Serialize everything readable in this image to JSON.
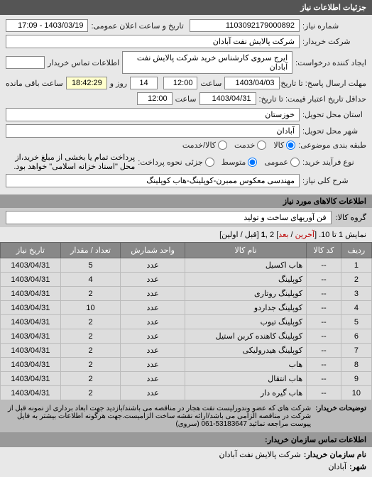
{
  "section_title": "جزئیات اطلاعات نیاز",
  "fields": {
    "request_number_label": "شماره نیاز:",
    "request_number": "1103092179000892",
    "announce_datetime_label": "تاریخ و ساعت اعلان عمومی:",
    "announce_datetime": "1403/03/19 - 17:09",
    "buyer_company_label": "شرکت خریدار:",
    "buyer_company": "شرکت پالایش نفت آبادان",
    "requester_label": "ایجاد کننده درخواست:",
    "requester": "ایرج سروی کارشناس خرید شرکت پالایش نفت آبادان",
    "buyer_contact_label": "اطلاعات تماس خریدار",
    "buyer_contact": "",
    "deadline_send_label": "مهلت ارسال پاسخ: تا تاریخ:",
    "deadline_date": "1403/04/03",
    "saat_label": "ساعت",
    "deadline_time": "12:00",
    "deadline_days": "14",
    "rooz_label": "روز و",
    "deadline_remaining": "18:42:29",
    "remaining_label": "ساعت باقی مانده",
    "validity_label": "حداقل تاریخ اعتبار قیمت: تا تاریخ:",
    "validity_date": "1403/04/31",
    "validity_time": "12:00",
    "province_label": "استان محل تحویل:",
    "province": "خوزستان",
    "city_label": "شهر محل تحویل:",
    "city": "آبادان",
    "budget_type_label": "طبقه بندی موضوعی:",
    "payment_type_label": "نوع فرآیند خرید:",
    "payment_method_label": "نحوه پرداخت:",
    "payment_note": "پرداخت تمام یا بخشی از مبلغ خرید،از محل \"اسناد خزانه اسلامی\" خواهد بود.",
    "overall_desc_label": "شرح کلی نیاز:",
    "overall_desc": "مهندسی معکوس ممبرن-کوپلینگ-هاب کوپلینگ"
  },
  "radios": {
    "budget": {
      "opt1": "کالا",
      "opt2": "خدمت",
      "opt3": "کالا/خدمت"
    },
    "process": {
      "opt1": "عمومی",
      "opt2": "متوسط",
      "opt3": "جزئی"
    }
  },
  "items_section_title": "اطلاعات کالاهای مورد نیاز",
  "category_label": "گروه کالا:",
  "category_value": "فن آوریهای ساخت و تولید",
  "pager": {
    "text_prefix": "نمایش 1 تا 10. [",
    "last": "آخرین",
    "sep": " / ",
    "next": "بعد",
    "text_suffix": "] 2 ,",
    "current": "1",
    "tail": " [قبل / اولین]"
  },
  "table": {
    "headers": [
      "ردیف",
      "کد کالا",
      "نام کالا",
      "واحد شمارش",
      "تعداد / مقدار",
      "تاریخ نیاز"
    ],
    "rows": [
      [
        "1",
        "--",
        "هاب اکسیل",
        "عدد",
        "5",
        "1403/04/31"
      ],
      [
        "2",
        "--",
        "کوپلینگ",
        "عدد",
        "4",
        "1403/04/31"
      ],
      [
        "3",
        "--",
        "کوپلینگ روتاری",
        "عدد",
        "2",
        "1403/04/31"
      ],
      [
        "4",
        "--",
        "کوپلینگ جداردو",
        "عدد",
        "10",
        "1403/04/31"
      ],
      [
        "5",
        "--",
        "کوپلینگ تیوب",
        "عدد",
        "2",
        "1403/04/31"
      ],
      [
        "6",
        "--",
        "کوپلینگ کاهنده کربن استیل",
        "عدد",
        "2",
        "1403/04/31"
      ],
      [
        "7",
        "--",
        "کوپلینگ هیدرولیکی",
        "عدد",
        "2",
        "1403/04/31"
      ],
      [
        "8",
        "--",
        "هاب",
        "عدد",
        "2",
        "1403/04/31"
      ],
      [
        "9",
        "--",
        "هاب انتقال",
        "عدد",
        "2",
        "1403/04/31"
      ],
      [
        "10",
        "--",
        "هاب گیره دار",
        "عدد",
        "2",
        "1403/04/31"
      ]
    ]
  },
  "note": {
    "label": "توضیحات خریدار:",
    "text": "شرکت های که عضو وندورلیست نفت هجار در مناقصه می باشند/بازدید جهت ابعاد برداری از نمونه قبل از شرکت در مناقصه الزامی می باشد/ارائه نقشه ساخت الزامیست.جهت هرگونه اطلاعات بیشتر به فایل پیوست مراجعه نمائید 53183647-061 (سروی)"
  },
  "footer": {
    "contact_title": "اطلاعات تماس سازمان خریدار:",
    "org_label": "نام سازمان خریدار:",
    "org_value": "شرکت پالایش نفت آبادان",
    "city_label": "شهر:",
    "city_value": "آبادان"
  }
}
